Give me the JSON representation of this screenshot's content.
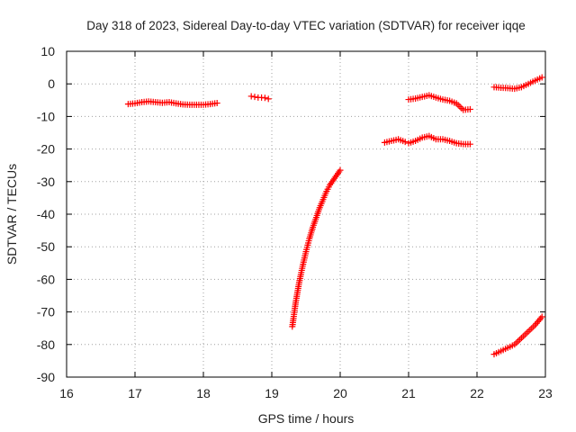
{
  "chart_data": {
    "type": "scatter",
    "title": "Day 318 of 2023, Sidereal Day-to-day VTEC variation (SDTVAR) for receiver iqqe",
    "xlabel": "GPS time / hours",
    "ylabel": "SDTVAR / TECUs",
    "xlim": [
      16,
      23
    ],
    "ylim": [
      -90,
      10
    ],
    "xticks": [
      16,
      17,
      18,
      19,
      20,
      21,
      22,
      23
    ],
    "yticks": [
      10,
      0,
      -10,
      -20,
      -30,
      -40,
      -50,
      -60,
      -70,
      -80,
      -90
    ],
    "grid": true,
    "marker": "plus",
    "color": "#ff0000",
    "series": [
      {
        "name": "segment-1",
        "x": [
          16.9,
          17.0,
          17.1,
          17.2,
          17.3,
          17.4,
          17.5,
          17.6,
          17.7,
          17.8,
          17.9,
          18.0,
          18.1,
          18.2
        ],
        "y": [
          -6.2,
          -6.0,
          -5.6,
          -5.4,
          -5.6,
          -5.8,
          -5.6,
          -6.0,
          -6.3,
          -6.4,
          -6.4,
          -6.4,
          -6.2,
          -5.9
        ]
      },
      {
        "name": "segment-2",
        "x": [
          18.7,
          18.75,
          18.8,
          18.85,
          18.9,
          18.95
        ],
        "y": [
          -3.8,
          -4.0,
          -4.2,
          -4.2,
          -4.3,
          -4.6
        ]
      },
      {
        "name": "segment-3",
        "x": [
          19.3,
          19.35,
          19.4,
          19.45,
          19.5,
          19.55,
          19.6,
          19.65,
          19.7,
          19.75,
          19.8,
          19.85,
          19.9,
          19.95,
          20.0
        ],
        "y": [
          -74.5,
          -67.0,
          -61.0,
          -56.0,
          -51.5,
          -47.5,
          -44.0,
          -41.0,
          -38.0,
          -35.5,
          -33.0,
          -31.0,
          -29.5,
          -28.0,
          -26.5
        ]
      },
      {
        "name": "segment-4",
        "x": [
          20.65,
          20.75,
          20.85,
          20.95,
          21.0,
          21.1,
          21.2,
          21.3,
          21.4,
          21.5,
          21.6,
          21.7,
          21.8,
          21.9
        ],
        "y": [
          -18.0,
          -17.5,
          -17.0,
          -17.8,
          -18.2,
          -17.5,
          -16.5,
          -16.0,
          -17.0,
          -17.0,
          -17.5,
          -18.2,
          -18.5,
          -18.5
        ]
      },
      {
        "name": "segment-5",
        "x": [
          21.0,
          21.1,
          21.2,
          21.3,
          21.4,
          21.5,
          21.6,
          21.7,
          21.75,
          21.8,
          21.9
        ],
        "y": [
          -4.8,
          -4.5,
          -4.0,
          -3.5,
          -4.2,
          -4.8,
          -5.2,
          -6.0,
          -7.0,
          -8.0,
          -7.8
        ]
      },
      {
        "name": "segment-6",
        "x": [
          22.25,
          22.35,
          22.45,
          22.55,
          22.65,
          22.75,
          22.85,
          22.95
        ],
        "y": [
          -1.0,
          -1.2,
          -1.3,
          -1.5,
          -1.0,
          0.0,
          1.0,
          2.0
        ]
      },
      {
        "name": "segment-7",
        "x": [
          22.25,
          22.35,
          22.45,
          22.55,
          22.65,
          22.75,
          22.85,
          22.95
        ],
        "y": [
          -83.0,
          -82.0,
          -81.0,
          -80.0,
          -78.0,
          -76.0,
          -74.0,
          -71.5
        ]
      }
    ]
  }
}
